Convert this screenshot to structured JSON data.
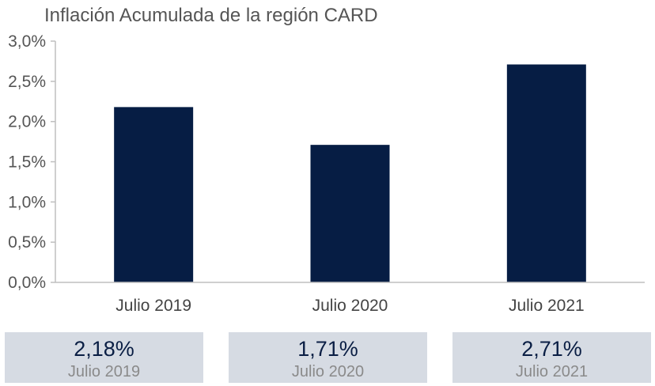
{
  "colors": {
    "bar": "#061d44",
    "axis": "#bfbfbf",
    "card_bg": "#d6dbe3"
  },
  "chart_data": {
    "type": "bar",
    "title": "Inflación Acumulada de la región CARD",
    "categories": [
      "Julio 2019",
      "Julio 2020",
      "Julio 2021"
    ],
    "values": [
      2.18,
      1.71,
      2.71
    ],
    "ylim": [
      0,
      3.0
    ],
    "yticks": [
      "0,0%",
      "0,5%",
      "1,0%",
      "1,5%",
      "2,0%",
      "2,5%",
      "3,0%"
    ],
    "xlabel": "",
    "ylabel": "",
    "grid": false,
    "legend": "none"
  },
  "cards": [
    {
      "value": "2,18%",
      "label": "Julio 2019"
    },
    {
      "value": "1,71%",
      "label": "Julio 2020"
    },
    {
      "value": "2,71%",
      "label": "Julio 2021"
    }
  ]
}
